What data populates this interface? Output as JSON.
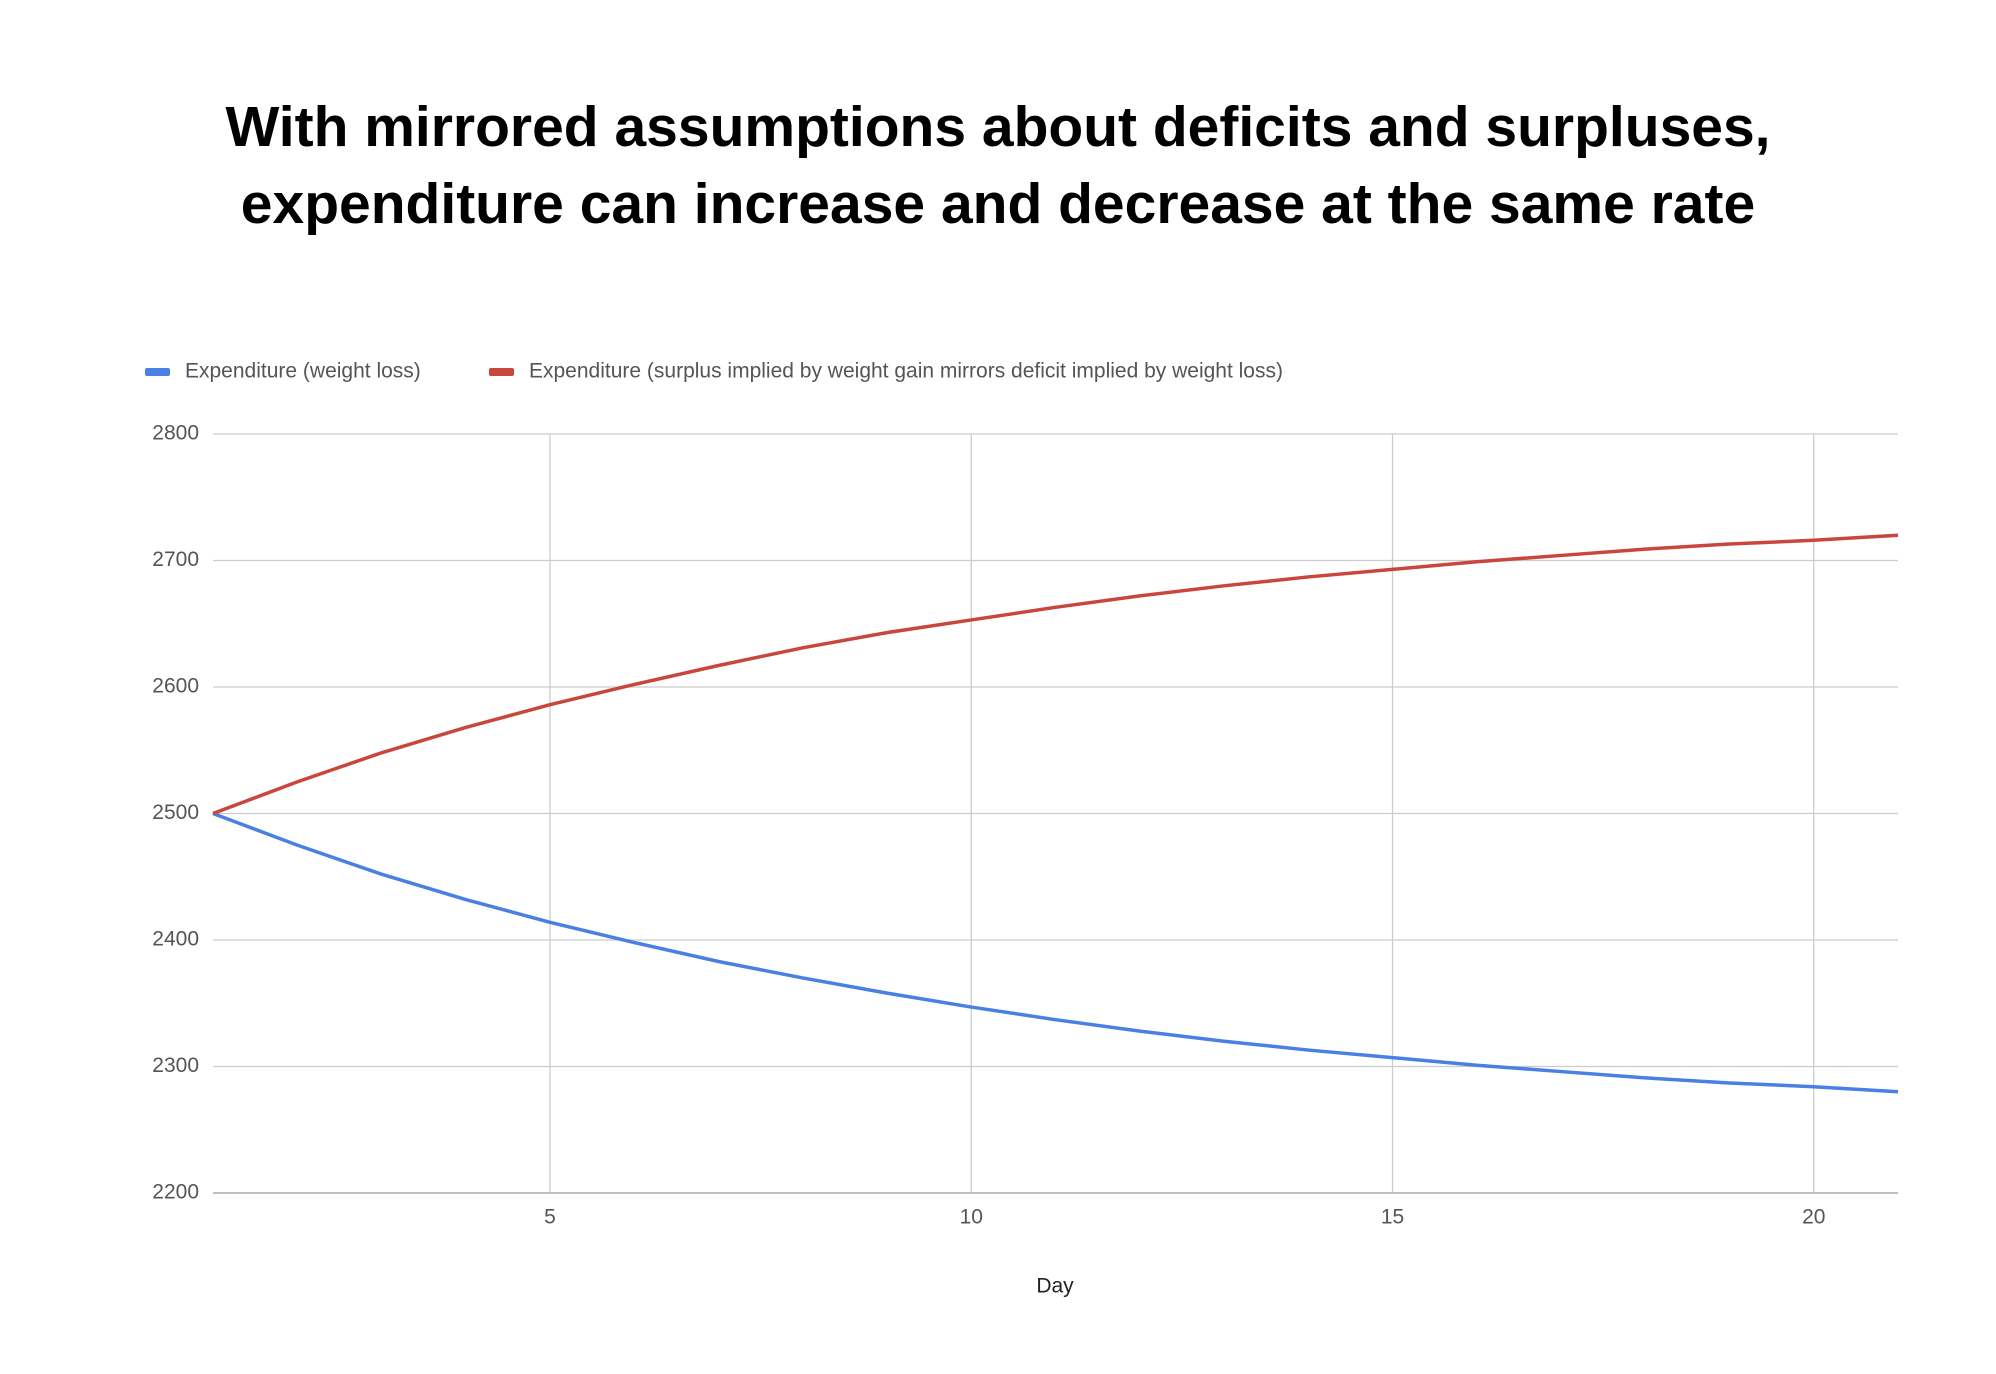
{
  "chart_data": {
    "type": "line",
    "title": [
      "With mirrored assumptions about deficits and surpluses,",
      "expenditure can increase and decrease at the same rate"
    ],
    "x_label": "Day",
    "x": [
      1,
      2,
      3,
      4,
      5,
      6,
      7,
      8,
      9,
      10,
      11,
      12,
      13,
      14,
      15,
      16,
      17,
      18,
      19,
      20,
      21
    ],
    "series": [
      {
        "name": "Expenditure (weight loss)",
        "color": "#4a7fe4",
        "values": [
          2500,
          2475,
          2452,
          2432,
          2414,
          2398,
          2383,
          2370,
          2358,
          2347,
          2337,
          2328,
          2320,
          2313,
          2307,
          2301,
          2296,
          2291,
          2287,
          2284,
          2280
        ]
      },
      {
        "name": "Expenditure (surplus implied by weight gain mirrors deficit implied by weight loss)",
        "color": "#c9463d",
        "values": [
          2500,
          2525,
          2548,
          2568,
          2586,
          2602,
          2617,
          2631,
          2643,
          2653,
          2663,
          2672,
          2680,
          2687,
          2693,
          2699,
          2704,
          2709,
          2713,
          2716,
          2720
        ]
      }
    ],
    "xlim": [
      1,
      21
    ],
    "xticks": [
      5,
      10,
      15,
      20
    ],
    "ylim": [
      2200,
      2800
    ],
    "yticks": [
      2200,
      2300,
      2400,
      2500,
      2600,
      2700,
      2800
    ],
    "grid": true,
    "legend": "top"
  }
}
